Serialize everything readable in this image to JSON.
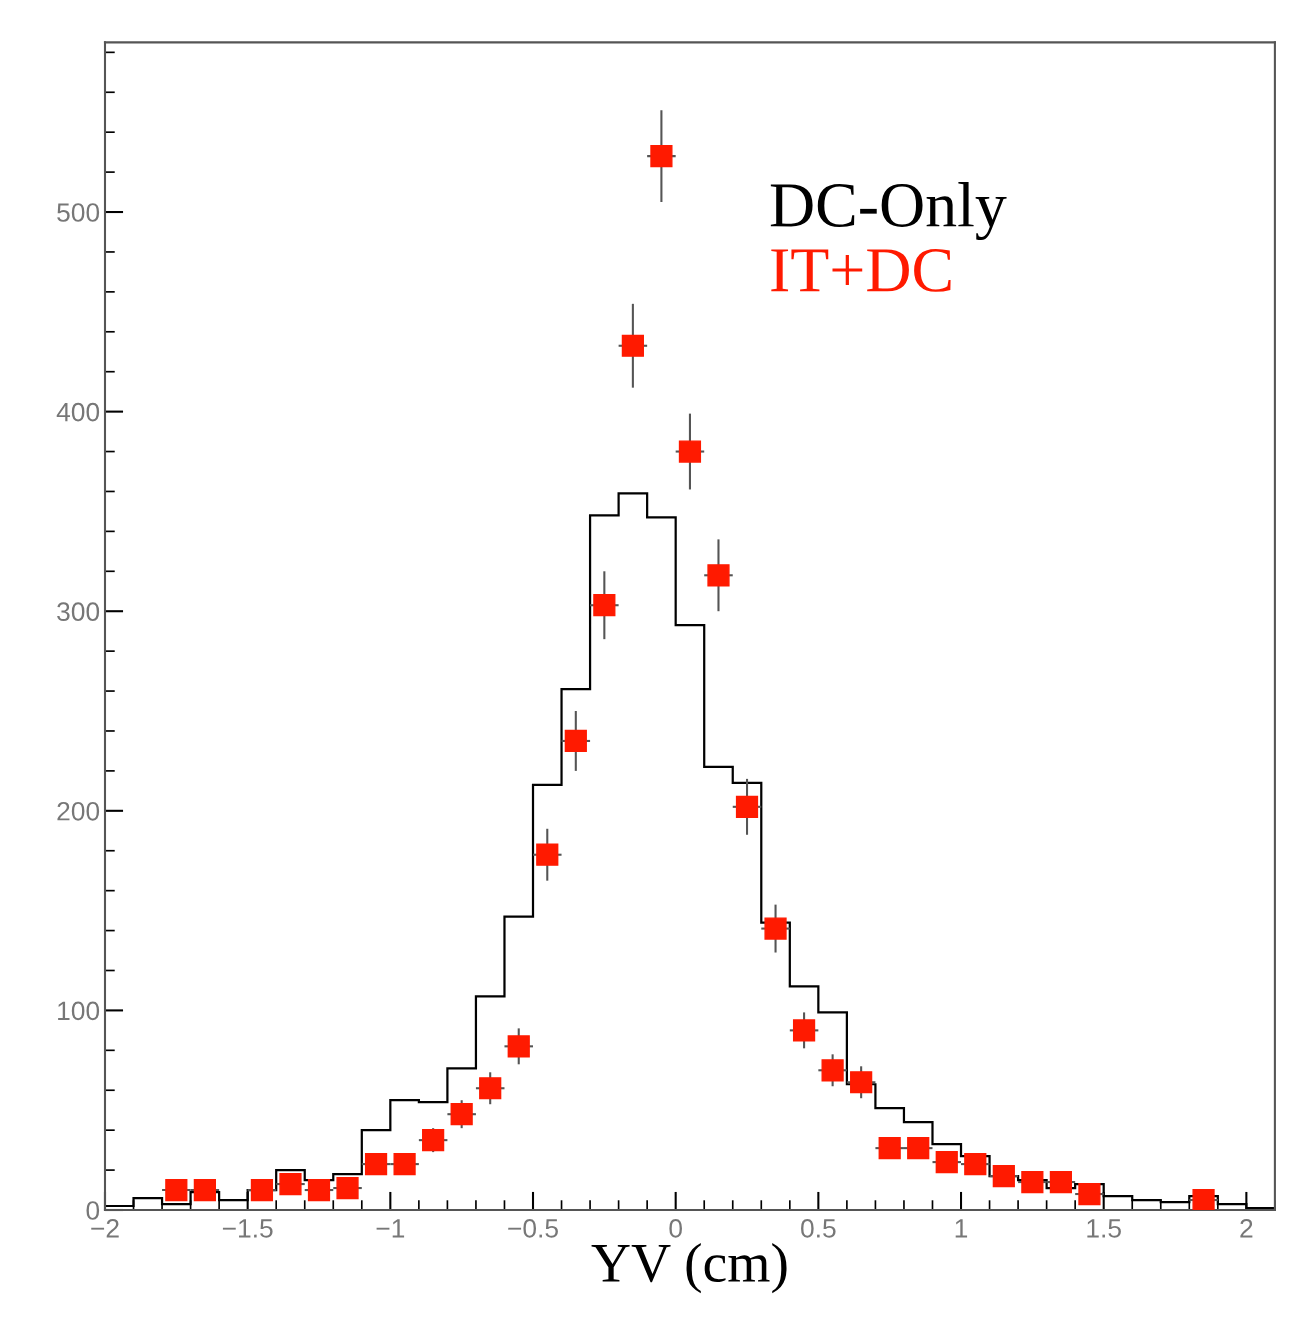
{
  "chart_data": {
    "type": "histogram",
    "xlabel": "YV (cm)",
    "bins": [
      -2.0,
      -1.9,
      -1.8,
      -1.7,
      -1.6,
      -1.5,
      -1.4,
      -1.3,
      -1.2,
      -1.1,
      -1.0,
      -0.9,
      -0.8,
      -0.7,
      -0.6,
      -0.5,
      -0.4,
      -0.3,
      -0.2,
      -0.1,
      0.0,
      0.1,
      0.2,
      0.3,
      0.4,
      0.5,
      0.6,
      0.7,
      0.8,
      0.9,
      1.0,
      1.1,
      1.2,
      1.3,
      1.4,
      1.5,
      1.6,
      1.7,
      1.8,
      1.9,
      2.0,
      2.1
    ],
    "series": [
      {
        "name": "DC-Only",
        "color": "#000000",
        "values": [
          2,
          6,
          3,
          9,
          5,
          10,
          20,
          15,
          18,
          40,
          55,
          54,
          71,
          107,
          147,
          213,
          261,
          348,
          359,
          347,
          293,
          222,
          214,
          144,
          112,
          99,
          63,
          51,
          44,
          33,
          27,
          17,
          15,
          11,
          13,
          7,
          5,
          4,
          7,
          3,
          1
        ]
      },
      {
        "name": "IT+DC",
        "type": "scatter",
        "color": "#ff1a00",
        "marker": "square",
        "x": [
          -1.75,
          -1.65,
          -1.45,
          -1.35,
          -1.25,
          -1.15,
          -1.05,
          -0.95,
          -0.85,
          -0.75,
          -0.65,
          -0.55,
          -0.45,
          -0.35,
          -0.25,
          -0.15,
          -0.05,
          0.05,
          0.15,
          0.25,
          0.35,
          0.45,
          0.55,
          0.65,
          0.75,
          0.85,
          0.95,
          1.05,
          1.15,
          1.25,
          1.35,
          1.45,
          1.85
        ],
        "values": [
          10,
          10,
          10,
          13,
          10,
          11,
          23,
          23,
          35,
          48,
          61,
          82,
          178,
          235,
          303,
          433,
          528,
          380,
          318,
          202,
          141,
          90,
          70,
          64,
          31,
          31,
          24,
          23,
          17,
          14,
          14,
          8,
          5
        ],
        "errors": [
          null,
          null,
          null,
          null,
          null,
          null,
          null,
          null,
          6,
          7,
          8,
          9,
          13,
          15,
          17,
          21,
          23,
          19,
          18,
          14,
          12,
          9,
          8,
          8,
          null,
          null,
          null,
          null,
          null,
          null,
          null,
          null,
          null
        ],
        "xerrors": [
          0.05,
          0.05,
          0.05,
          0.05,
          0.05,
          0.05,
          0.05,
          0.05,
          0.05,
          0.05,
          0.05,
          0.05,
          0.05,
          0.05,
          0.05,
          0.05,
          0.05,
          0.05,
          0.05,
          0.05,
          0.05,
          0.05,
          0.05,
          0.05,
          0.05,
          0.05,
          0.05,
          0.05,
          0.05,
          0.05,
          0.05,
          0.05,
          0.05
        ]
      }
    ],
    "xlim": [
      -2.0,
      2.1
    ],
    "ylim": [
      0,
      585
    ],
    "xticks": [
      -2,
      -1.5,
      -1,
      -0.5,
      0,
      0.5,
      1,
      1.5,
      2
    ],
    "yticks": [
      0,
      100,
      200,
      300,
      400,
      500
    ],
    "legend": "top right",
    "grid": false
  }
}
